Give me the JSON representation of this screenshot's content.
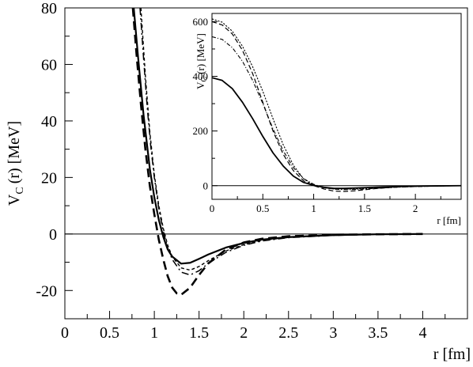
{
  "chart_data": [
    {
      "type": "line",
      "xlabel": "r [fm]",
      "ylabel_main": "V",
      "ylabel_sub": "C",
      "ylabel_rest": "(r) [MeV]",
      "xlim": [
        0,
        4.5
      ],
      "ylim": [
        -30,
        80
      ],
      "xticks": [
        0,
        0.5,
        1,
        1.5,
        2,
        2.5,
        3,
        3.5,
        4
      ],
      "xtick_labels": [
        "0",
        "0.5",
        "1",
        "1.5",
        "2",
        "2.5",
        "3",
        "3.5",
        "4"
      ],
      "yticks": [
        -20,
        0,
        20,
        40,
        60,
        80
      ],
      "ytick_labels": [
        "-20",
        "0",
        "20",
        "40",
        "60",
        "80"
      ],
      "zero_line": true,
      "series": [
        {
          "style": "solid",
          "x": [
            0.77,
            0.82,
            0.88,
            0.95,
            1.0,
            1.05,
            1.1,
            1.15,
            1.2,
            1.3,
            1.4,
            1.5,
            1.6,
            1.8,
            2.0,
            2.2,
            2.5,
            3.0,
            3.5,
            4.0
          ],
          "y": [
            80,
            62,
            42,
            23,
            13,
            5,
            -1,
            -5.5,
            -8,
            -10.5,
            -10.2,
            -8.8,
            -7.3,
            -4.8,
            -3.2,
            -2.0,
            -1.1,
            -0.4,
            -0.1,
            0
          ]
        },
        {
          "style": "dashed",
          "x": [
            0.76,
            0.8,
            0.85,
            0.9,
            0.95,
            1.0,
            1.05,
            1.1,
            1.15,
            1.2,
            1.25,
            1.3,
            1.4,
            1.5,
            1.6,
            1.8,
            2.0,
            2.2,
            2.5,
            3.0,
            3.5,
            4.0
          ],
          "y": [
            80,
            64,
            46,
            30,
            17,
            7,
            -2,
            -9,
            -15,
            -19,
            -21,
            -21.5,
            -19,
            -14.5,
            -10.5,
            -5.5,
            -3,
            -1.7,
            -0.8,
            -0.3,
            -0.1,
            0
          ]
        },
        {
          "style": "dashdot",
          "x": [
            0.84,
            0.88,
            0.92,
            0.96,
            1.0,
            1.05,
            1.1,
            1.15,
            1.2,
            1.3,
            1.4,
            1.5,
            1.6,
            1.8,
            2.0,
            2.2,
            2.5,
            3.0,
            3.5,
            4.0
          ],
          "y": [
            80,
            62,
            45,
            31,
            20,
            9,
            1,
            -5,
            -9,
            -13.5,
            -14.5,
            -13,
            -10.5,
            -6.5,
            -4,
            -2.5,
            -1.3,
            -0.5,
            -0.1,
            0
          ]
        },
        {
          "style": "dotted",
          "x": [
            0.85,
            0.9,
            0.95,
            1.0,
            1.05,
            1.1,
            1.15,
            1.2,
            1.3,
            1.4,
            1.5,
            1.6,
            1.8,
            2.0,
            2.2,
            2.5,
            3.0,
            3.5,
            4.0
          ],
          "y": [
            80,
            56,
            36,
            21,
            10,
            2,
            -4,
            -8,
            -12,
            -12.8,
            -11.5,
            -9.5,
            -6,
            -3.8,
            -2.3,
            -1.2,
            -0.4,
            -0.1,
            0
          ]
        }
      ]
    },
    {
      "type": "line",
      "xlabel": "r [fm]",
      "ylabel_main": "V",
      "ylabel_sub": "C",
      "ylabel_rest": "(r) [MeV]",
      "xlim": [
        0,
        2.45
      ],
      "ylim": [
        -50,
        630
      ],
      "xticks": [
        0,
        0.5,
        1,
        1.5,
        2
      ],
      "xtick_labels": [
        "0",
        "0.5",
        "1",
        "1.5",
        "2"
      ],
      "yticks": [
        0,
        200,
        400,
        600
      ],
      "ytick_labels": [
        "0",
        "200",
        "400",
        "600"
      ],
      "zero_line": true,
      "series": [
        {
          "style": "solid",
          "x": [
            0,
            0.1,
            0.2,
            0.3,
            0.4,
            0.5,
            0.6,
            0.7,
            0.8,
            0.9,
            1.0,
            1.1,
            1.2,
            1.3,
            1.4,
            1.6,
            1.8,
            2.0,
            2.2,
            2.45
          ],
          "y": [
            395,
            385,
            355,
            305,
            245,
            180,
            120,
            72,
            35,
            12,
            1,
            -6,
            -10,
            -10,
            -8.8,
            -6,
            -3.5,
            -2,
            -1,
            0
          ]
        },
        {
          "style": "dashed",
          "x": [
            0,
            0.1,
            0.2,
            0.3,
            0.4,
            0.5,
            0.6,
            0.7,
            0.8,
            0.9,
            1.0,
            1.1,
            1.2,
            1.3,
            1.4,
            1.6,
            1.8,
            2.0,
            2.2,
            2.45
          ],
          "y": [
            600,
            588,
            555,
            495,
            410,
            305,
            200,
            115,
            55,
            18,
            0,
            -12,
            -20,
            -21,
            -19,
            -11,
            -5.5,
            -3,
            -1.5,
            0
          ]
        },
        {
          "style": "dashdot",
          "x": [
            0,
            0.1,
            0.2,
            0.3,
            0.4,
            0.5,
            0.6,
            0.7,
            0.8,
            0.9,
            1.0,
            1.1,
            1.2,
            1.3,
            1.4,
            1.6,
            1.8,
            2.0,
            2.2,
            2.45
          ],
          "y": [
            545,
            535,
            505,
            455,
            385,
            300,
            208,
            128,
            66,
            26,
            5,
            -7,
            -13,
            -14.5,
            -14,
            -10,
            -6,
            -3.5,
            -1.5,
            0
          ]
        },
        {
          "style": "dotted",
          "x": [
            0,
            0.1,
            0.2,
            0.3,
            0.4,
            0.5,
            0.6,
            0.7,
            0.8,
            0.9,
            1.0,
            1.1,
            1.2,
            1.3,
            1.4,
            1.6,
            1.8,
            2.0,
            2.2,
            2.45
          ],
          "y": [
            610,
            598,
            565,
            510,
            435,
            345,
            245,
            150,
            75,
            25,
            2,
            -8,
            -12,
            -12.8,
            -12,
            -9,
            -5.5,
            -3,
            -1.5,
            0
          ]
        }
      ]
    }
  ]
}
